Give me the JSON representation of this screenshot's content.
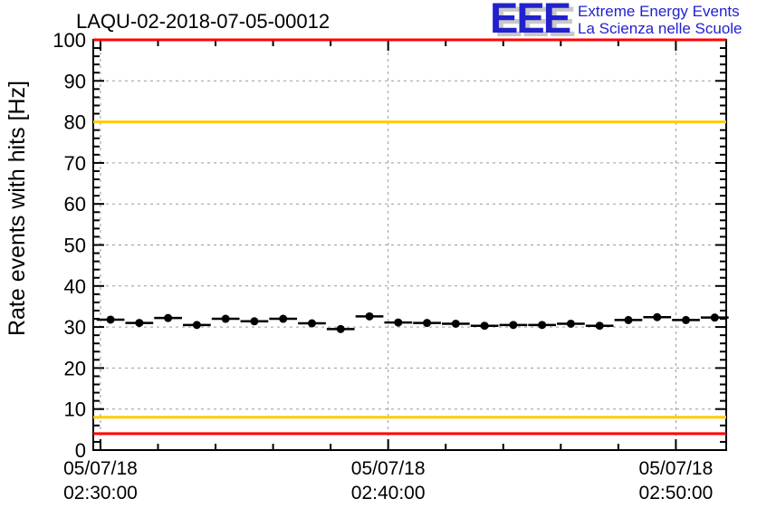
{
  "header": {
    "title": "LAQU-02-2018-07-05-00012",
    "logo": {
      "acronym": "EEE",
      "line1": "Extreme Energy Events",
      "line2": "La Scienza nelle Scuole",
      "text_color": "#2222cc",
      "shadow_color": "#c8c8c8"
    }
  },
  "chart_data": {
    "type": "scatter",
    "title": "LAQU-02-2018-07-05-00012",
    "xlabel": "",
    "ylabel": "Rate events with hits [Hz]",
    "ylim": [
      0,
      100
    ],
    "y_major_step": 10,
    "y_minor_step": 2,
    "grid": true,
    "grid_color": "#9a9a9a",
    "axis_color": "#000000",
    "x_range_s": [
      0,
      1320
    ],
    "x_minor_step_s": 120,
    "x_major_ticks": [
      {
        "t_s": 15,
        "date": "05/07/18",
        "time": "02:30:00"
      },
      {
        "t_s": 615,
        "date": "05/07/18",
        "time": "02:40:00"
      },
      {
        "t_s": 1215,
        "date": "05/07/18",
        "time": "02:50:00"
      }
    ],
    "series": [
      {
        "name": "rate-events-with-hits",
        "marker": "filled-circle",
        "color": "#000000",
        "x_s": [
          36,
          96,
          156,
          216,
          276,
          336,
          396,
          456,
          516,
          576,
          636,
          696,
          756,
          816,
          876,
          936,
          996,
          1056,
          1116,
          1176,
          1236,
          1296
        ],
        "y_hz": [
          31.8,
          31.0,
          32.2,
          30.5,
          32.0,
          31.4,
          32.0,
          30.9,
          29.5,
          32.6,
          31.1,
          31.0,
          30.8,
          30.3,
          30.5,
          30.5,
          30.8,
          30.3,
          31.7,
          32.4,
          31.7,
          32.3
        ],
        "xerr_s": 29,
        "yerr_hz": 0.6
      }
    ],
    "threshold_lines": [
      {
        "y_hz": 100,
        "color": "#ff0000"
      },
      {
        "y_hz": 80,
        "color": "#ffcc00"
      },
      {
        "y_hz": 8,
        "color": "#ffcc00"
      },
      {
        "y_hz": 4,
        "color": "#ff0000"
      }
    ]
  }
}
